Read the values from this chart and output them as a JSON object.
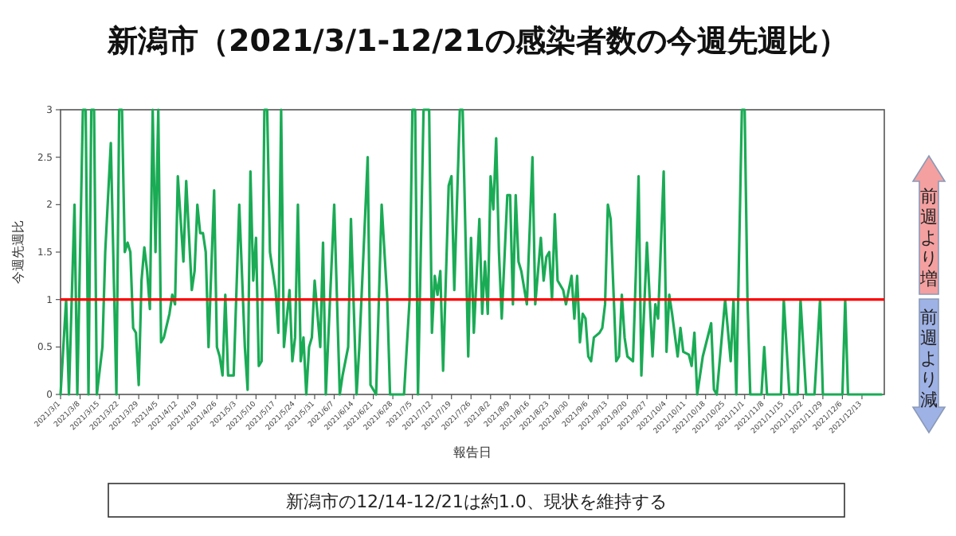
{
  "chart_data": {
    "type": "line",
    "title": "新潟市（2021/3/1-12/21の感染者数の今週先週比）",
    "xlabel": "報告日",
    "ylabel": "今週先週比",
    "annotations": [
      "前週より増",
      "前週より減",
      "新潟市の12/14-12/21は約1.0、現状を維持する"
    ],
    "xlim": [
      "2021-03-01",
      "2021-12-21"
    ],
    "xticks": [
      {
        "value": "2021-03-01",
        "label": "2021/3/1"
      },
      {
        "value": "2021-03-08",
        "label": "2021/3/8"
      },
      {
        "value": "2021-03-15",
        "label": "2021/3/15"
      },
      {
        "value": "2021-03-22",
        "label": "2021/3/22"
      },
      {
        "value": "2021-03-29",
        "label": "2021/3/29"
      },
      {
        "value": "2021-04-05",
        "label": "2021/4/5"
      },
      {
        "value": "2021-04-12",
        "label": "2021/4/12"
      },
      {
        "value": "2021-04-19",
        "label": "2021/4/19"
      },
      {
        "value": "2021-04-26",
        "label": "2021/4/26"
      },
      {
        "value": "2021-05-03",
        "label": "2021/5/3"
      },
      {
        "value": "2021-05-10",
        "label": "2021/5/10"
      },
      {
        "value": "2021-05-17",
        "label": "2021/5/17"
      },
      {
        "value": "2021-05-24",
        "label": "2021/5/24"
      },
      {
        "value": "2021-05-31",
        "label": "2021/5/31"
      },
      {
        "value": "2021-06-07",
        "label": "2021/6/7"
      },
      {
        "value": "2021-06-14",
        "label": "2021/6/14"
      },
      {
        "value": "2021-06-21",
        "label": "2021/6/21"
      },
      {
        "value": "2021-06-28",
        "label": "2021/6/28"
      },
      {
        "value": "2021-07-05",
        "label": "2021/7/5"
      },
      {
        "value": "2021-07-12",
        "label": "2021/7/12"
      },
      {
        "value": "2021-07-19",
        "label": "2021/7/19"
      },
      {
        "value": "2021-07-26",
        "label": "2021/7/26"
      },
      {
        "value": "2021-08-02",
        "label": "2021/8/2"
      },
      {
        "value": "2021-08-09",
        "label": "2021/8/9"
      },
      {
        "value": "2021-08-16",
        "label": "2021/8/16"
      },
      {
        "value": "2021-08-23",
        "label": "2021/8/23"
      },
      {
        "value": "2021-08-30",
        "label": "2021/8/30"
      },
      {
        "value": "2021-09-06",
        "label": "2021/9/6"
      },
      {
        "value": "2021-09-13",
        "label": "2021/9/13"
      },
      {
        "value": "2021-09-20",
        "label": "2021/9/20"
      },
      {
        "value": "2021-09-27",
        "label": "2021/9/27"
      },
      {
        "value": "2021-10-04",
        "label": "2021/10/4"
      },
      {
        "value": "2021-10-11",
        "label": "2021/10/11"
      },
      {
        "value": "2021-10-18",
        "label": "2021/10/18"
      },
      {
        "value": "2021-10-25",
        "label": "2021/10/25"
      },
      {
        "value": "2021-11-01",
        "label": "2021/11/1"
      },
      {
        "value": "2021-11-08",
        "label": "2021/11/8"
      },
      {
        "value": "2021-11-15",
        "label": "2021/11/15"
      },
      {
        "value": "2021-11-22",
        "label": "2021/11/22"
      },
      {
        "value": "2021-11-29",
        "label": "2021/11/29"
      },
      {
        "value": "2021-12-06",
        "label": "2021/12/6"
      },
      {
        "value": "2021-12-13",
        "label": "2021/12/13"
      }
    ],
    "ylim": [
      0,
      3
    ],
    "yticks": [
      0,
      0.5,
      1,
      1.5,
      2,
      2.5,
      3
    ],
    "ref_lines": [
      {
        "axis": "y",
        "value": 1,
        "color": "#ff0000"
      }
    ],
    "series": [
      {
        "color": "#1aab55",
        "x": [
          "2021-03-01",
          "2021-03-03",
          "2021-03-04",
          "2021-03-06",
          "2021-03-07",
          "2021-03-09",
          "2021-03-10",
          "2021-03-11",
          "2021-03-12",
          "2021-03-13",
          "2021-03-14",
          "2021-03-16",
          "2021-03-17",
          "2021-03-19",
          "2021-03-21",
          "2021-03-22",
          "2021-03-23",
          "2021-03-24",
          "2021-03-25",
          "2021-03-26",
          "2021-03-27",
          "2021-03-28",
          "2021-03-29",
          "2021-03-30",
          "2021-03-31",
          "2021-04-01",
          "2021-04-02",
          "2021-04-03",
          "2021-04-04",
          "2021-04-05",
          "2021-04-06",
          "2021-04-07",
          "2021-04-09",
          "2021-04-10",
          "2021-04-11",
          "2021-04-12",
          "2021-04-14",
          "2021-04-15",
          "2021-04-17",
          "2021-04-18",
          "2021-04-19",
          "2021-04-20",
          "2021-04-21",
          "2021-04-22",
          "2021-04-23",
          "2021-04-25",
          "2021-04-26",
          "2021-04-27",
          "2021-04-28",
          "2021-04-29",
          "2021-04-30",
          "2021-05-02",
          "2021-05-04",
          "2021-05-06",
          "2021-05-07",
          "2021-05-08",
          "2021-05-09",
          "2021-05-10",
          "2021-05-11",
          "2021-05-12",
          "2021-05-13",
          "2021-05-14",
          "2021-05-15",
          "2021-05-17",
          "2021-05-18",
          "2021-05-19",
          "2021-05-20",
          "2021-05-22",
          "2021-05-23",
          "2021-05-24",
          "2021-05-25",
          "2021-05-26",
          "2021-05-27",
          "2021-05-28",
          "2021-05-29",
          "2021-05-30",
          "2021-05-31",
          "2021-06-02",
          "2021-06-03",
          "2021-06-04",
          "2021-06-07",
          "2021-06-09",
          "2021-06-10",
          "2021-06-12",
          "2021-06-13",
          "2021-06-15",
          "2021-06-16",
          "2021-06-19",
          "2021-06-20",
          "2021-06-22",
          "2021-06-24",
          "2021-06-26",
          "2021-06-27",
          "2021-06-30",
          "2021-07-02",
          "2021-07-04",
          "2021-07-05",
          "2021-07-06",
          "2021-07-07",
          "2021-07-09",
          "2021-07-11",
          "2021-07-12",
          "2021-07-13",
          "2021-07-14",
          "2021-07-15",
          "2021-07-16",
          "2021-07-18",
          "2021-07-19",
          "2021-07-20",
          "2021-07-22",
          "2021-07-23",
          "2021-07-25",
          "2021-07-26",
          "2021-07-27",
          "2021-07-29",
          "2021-07-30",
          "2021-07-31",
          "2021-08-01",
          "2021-08-02",
          "2021-08-03",
          "2021-08-04",
          "2021-08-05",
          "2021-08-06",
          "2021-08-08",
          "2021-08-09",
          "2021-08-10",
          "2021-08-11",
          "2021-08-12",
          "2021-08-13",
          "2021-08-15",
          "2021-08-17",
          "2021-08-18",
          "2021-08-20",
          "2021-08-21",
          "2021-08-22",
          "2021-08-23",
          "2021-08-24",
          "2021-08-25",
          "2021-08-26",
          "2021-08-28",
          "2021-08-29",
          "2021-08-30",
          "2021-08-31",
          "2021-09-01",
          "2021-09-02",
          "2021-09-03",
          "2021-09-04",
          "2021-09-05",
          "2021-09-06",
          "2021-09-07",
          "2021-09-08",
          "2021-09-10",
          "2021-09-11",
          "2021-09-12",
          "2021-09-13",
          "2021-09-14",
          "2021-09-16",
          "2021-09-17",
          "2021-09-18",
          "2021-09-19",
          "2021-09-20",
          "2021-09-22",
          "2021-09-23",
          "2021-09-24",
          "2021-09-25",
          "2021-09-27",
          "2021-09-29",
          "2021-09-30",
          "2021-10-01",
          "2021-10-03",
          "2021-10-04",
          "2021-10-05",
          "2021-10-06",
          "2021-10-08",
          "2021-10-09",
          "2021-10-10",
          "2021-10-12",
          "2021-10-13",
          "2021-10-14",
          "2021-10-15",
          "2021-10-17",
          "2021-10-20",
          "2021-10-21",
          "2021-10-22",
          "2021-10-25",
          "2021-10-27",
          "2021-10-28",
          "2021-10-29",
          "2021-10-31",
          "2021-11-01",
          "2021-11-02",
          "2021-11-03",
          "2021-11-07",
          "2021-11-08",
          "2021-11-09",
          "2021-11-14",
          "2021-11-15",
          "2021-11-17",
          "2021-11-20",
          "2021-11-21",
          "2021-11-23",
          "2021-11-26",
          "2021-11-28",
          "2021-11-29",
          "2021-12-06",
          "2021-12-07",
          "2021-12-08",
          "2021-12-20"
        ],
        "values": [
          0,
          1,
          0,
          2,
          0,
          3,
          3,
          0,
          3,
          3,
          0,
          0.5,
          1.5,
          2.65,
          0,
          3,
          3,
          1.5,
          1.6,
          1.5,
          0.7,
          0.65,
          0.1,
          1.2,
          1.55,
          1.3,
          0.9,
          3,
          1.5,
          3,
          0.55,
          0.6,
          0.85,
          1.05,
          0.95,
          2.3,
          1.4,
          2.25,
          1.1,
          1.3,
          2,
          1.7,
          1.7,
          1.5,
          0.5,
          2.15,
          0.5,
          0.4,
          0.2,
          1.05,
          0.2,
          0.2,
          2,
          0.5,
          0.05,
          2.35,
          1.2,
          1.65,
          0.3,
          0.35,
          3,
          3,
          1.5,
          1.1,
          0.65,
          3,
          0.5,
          1.1,
          0.35,
          0.6,
          2,
          0.35,
          0.6,
          0,
          0.5,
          0.6,
          1.2,
          0.5,
          1.6,
          0,
          2,
          0,
          0.2,
          0.5,
          1.85,
          0,
          0.5,
          2.5,
          0.1,
          0,
          2,
          1,
          0,
          0,
          0,
          1,
          3,
          3,
          0,
          3,
          3,
          0.65,
          1.25,
          1.05,
          1.3,
          0.25,
          2.2,
          2.3,
          1.1,
          3,
          3,
          0.4,
          1.65,
          0.65,
          1.85,
          0.85,
          1.4,
          0.85,
          2.3,
          1.95,
          2.7,
          1.5,
          0.8,
          2.1,
          2.1,
          0.95,
          2.1,
          1.4,
          1.3,
          0.95,
          2.5,
          0.95,
          1.65,
          1.2,
          1.45,
          1.5,
          1,
          1.9,
          1.2,
          1.1,
          0.95,
          1.1,
          1.25,
          0.8,
          1.25,
          0.55,
          0.85,
          0.8,
          0.4,
          0.35,
          0.6,
          0.65,
          0.7,
          0.95,
          2,
          1.85,
          0.35,
          0.4,
          1.05,
          0.6,
          0.4,
          0.35,
          1.25,
          2.3,
          0.2,
          1.6,
          0.4,
          0.95,
          0.8,
          2.35,
          0.45,
          1.05,
          0.85,
          0.4,
          0.7,
          0.45,
          0.42,
          0.3,
          0.65,
          0,
          0.4,
          0.75,
          0.05,
          0,
          1,
          0.35,
          1,
          0,
          3,
          3,
          1,
          0,
          0,
          0.5,
          0,
          0,
          1,
          0,
          0,
          1,
          0,
          0,
          1,
          0,
          0,
          1,
          0,
          0
        ]
      }
    ]
  }
}
